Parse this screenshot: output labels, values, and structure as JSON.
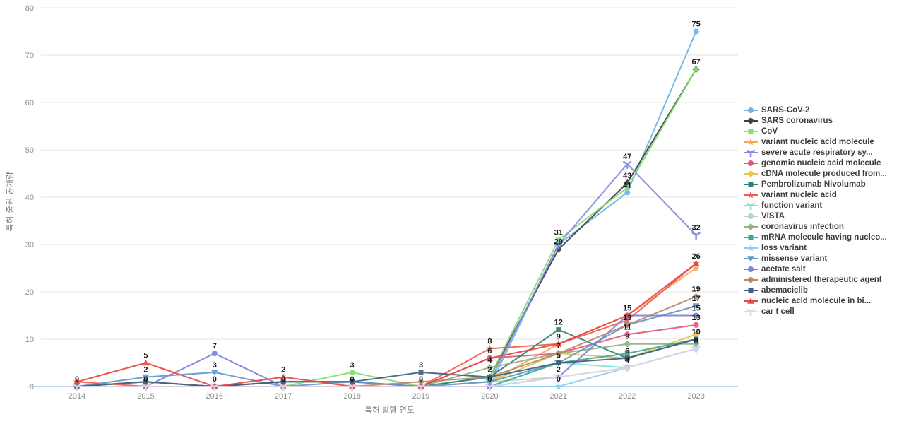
{
  "axes": {
    "x_title": "특허 발행 연도",
    "y_title": "특허 출원 공개량",
    "x_ticks": [
      "2014",
      "2015",
      "2016",
      "2017",
      "2018",
      "2019",
      "2020",
      "2021",
      "2022",
      "2023"
    ],
    "y_ticks": [
      "0",
      "10",
      "20",
      "30",
      "40",
      "50",
      "60",
      "70",
      "80"
    ]
  },
  "chart_data": {
    "type": "line",
    "title": "",
    "xlabel": "특허 발행 연도",
    "ylabel": "특허 출원 공개량",
    "x": [
      2014,
      2015,
      2016,
      2017,
      2018,
      2019,
      2020,
      2021,
      2022,
      2023
    ],
    "ylim": [
      0,
      80
    ],
    "ytick_step": 10,
    "grid": "horizontal",
    "legend_position": "right",
    "series": [
      {
        "name": "SARS-CoV-2",
        "color": "#6fb3e3",
        "marker": "circle",
        "values": [
          0,
          0,
          0,
          0,
          0,
          0,
          0,
          30,
          41,
          75
        ],
        "label_idx": [
          0,
          1,
          2,
          3,
          4,
          5,
          6,
          8,
          9
        ]
      },
      {
        "name": "SARS coronavirus",
        "color": "#3f4048",
        "marker": "diamond",
        "values": [
          0,
          1,
          0,
          1,
          1,
          0,
          2,
          29,
          43,
          67
        ],
        "label_idx": [
          7,
          8
        ]
      },
      {
        "name": "CoV",
        "color": "#86e070",
        "marker": "square",
        "values": [
          0,
          0,
          0,
          0,
          3,
          0,
          2,
          31,
          42,
          67
        ],
        "label_idx": [
          4,
          7,
          9
        ]
      },
      {
        "name": "variant nucleic acid molecule",
        "color": "#f6a75e",
        "marker": "star",
        "values": [
          0,
          0,
          0,
          0,
          0,
          0,
          1,
          9,
          15,
          25
        ],
        "label_idx": [
          7
        ]
      },
      {
        "name": "severe acute respiratory sy...",
        "color": "#8588e2",
        "marker": "y",
        "values": [
          0,
          0,
          0,
          0,
          0,
          0,
          1,
          30,
          47,
          32
        ],
        "label_idx": [
          8,
          9
        ]
      },
      {
        "name": "genomic nucleic acid molecule",
        "color": "#e8577a",
        "marker": "circle",
        "values": [
          0,
          0,
          0,
          0,
          0,
          0,
          6,
          7,
          11,
          13
        ],
        "label_idx": [
          6,
          8,
          9
        ]
      },
      {
        "name": "cDNA molecule produced from...",
        "color": "#e2c84e",
        "marker": "diamond",
        "values": [
          0,
          0,
          0,
          0,
          0,
          0,
          1,
          7,
          6,
          11
        ],
        "label_idx": [
          7
        ]
      },
      {
        "name": "Pembrolizumab Nivolumab",
        "color": "#2f7e79",
        "marker": "square",
        "values": [
          0,
          0,
          0,
          0,
          0,
          0,
          2,
          12,
          6,
          10
        ],
        "label_idx": [
          6,
          7,
          8,
          9
        ]
      },
      {
        "name": "variant nucleic acid",
        "color": "#ef5b51",
        "marker": "star",
        "values": [
          1,
          0,
          0,
          0,
          0,
          0,
          8,
          9,
          14,
          26
        ],
        "label_idx": [
          6
        ]
      },
      {
        "name": "function variant",
        "color": "#85e2d4",
        "marker": "y",
        "values": [
          0,
          0,
          0,
          0,
          0,
          0,
          1,
          5,
          4,
          8
        ],
        "label_idx": [
          9
        ]
      },
      {
        "name": "VISTA",
        "color": "#b2d8b4",
        "marker": "circle",
        "values": [
          0,
          0,
          0,
          0,
          0,
          0,
          1,
          2,
          4,
          8
        ],
        "label_idx": [
          7
        ]
      },
      {
        "name": "coronavirus infection",
        "color": "#93b183",
        "marker": "diamond",
        "values": [
          0,
          1,
          0,
          0,
          0,
          0,
          4,
          7,
          9,
          9
        ],
        "label_idx": [
          6,
          8
        ]
      },
      {
        "name": "mRNA molecule having nucleo...",
        "color": "#41a98b",
        "marker": "square",
        "values": [
          0,
          0,
          0,
          0,
          0,
          0,
          0,
          5,
          7,
          10
        ],
        "label_idx": []
      },
      {
        "name": "loss variant",
        "color": "#86d2f0",
        "marker": "star",
        "values": [
          0,
          0,
          0,
          0,
          0,
          0,
          0,
          0,
          4,
          8
        ],
        "label_idx": [
          7,
          8
        ]
      },
      {
        "name": "missense variant",
        "color": "#6399c8",
        "marker": "triangle-down",
        "values": [
          0,
          2,
          3,
          0,
          1,
          0,
          1,
          5,
          13,
          17
        ],
        "label_idx": [
          1,
          2,
          8,
          9
        ]
      },
      {
        "name": "acetate salt",
        "color": "#7c80d8",
        "marker": "circle",
        "values": [
          0,
          0,
          7,
          0,
          0,
          0,
          0,
          2,
          15,
          15
        ],
        "label_idx": [
          2,
          8,
          9
        ]
      },
      {
        "name": "administered therapeutic agent",
        "color": "#b48a6a",
        "marker": "diamond",
        "values": [
          0,
          0,
          0,
          0,
          0,
          1,
          2,
          7,
          13,
          19
        ],
        "label_idx": [
          9
        ]
      },
      {
        "name": "abemaciclib",
        "color": "#40607e",
        "marker": "square",
        "values": [
          0,
          1,
          0,
          1,
          1,
          3,
          2,
          5,
          6,
          10
        ],
        "label_idx": [
          5,
          7
        ]
      },
      {
        "name": "nucleic acid molecule in bi...",
        "color": "#e8473f",
        "marker": "triangle-up",
        "values": [
          1,
          5,
          0,
          2,
          0,
          0,
          6,
          9,
          15,
          26
        ],
        "label_idx": [
          1,
          3,
          9
        ]
      },
      {
        "name": "car t cell",
        "color": "#e4d4ec",
        "marker": "y",
        "values": [
          0,
          0,
          0,
          0,
          0,
          0,
          0,
          2,
          4,
          8
        ],
        "label_idx": []
      }
    ]
  },
  "style": {
    "grid_color": "#e6e6e6",
    "zero_axis_color": "#a9c6e8",
    "label_color": "#151515"
  }
}
